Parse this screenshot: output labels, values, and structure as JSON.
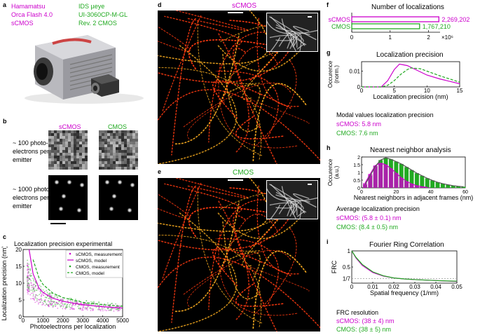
{
  "panel_labels": {
    "a": "a",
    "b": "b",
    "c": "c",
    "d": "d",
    "e": "e",
    "f": "f",
    "g": "g",
    "h": "h",
    "i": "i"
  },
  "camera_left": {
    "line1": "Hamamatsu",
    "line2": "Orca Flash 4.0",
    "line3": "sCMOS"
  },
  "camera_right": {
    "line1": "IDS µeye",
    "line2": "UI-3060CP-M-GL",
    "line3": "Rev. 2 CMOS"
  },
  "panel_b": {
    "col_scmos": "sCMOS",
    "col_cmos": "CMOS",
    "row1": [
      "~ 100 photo-",
      "electrons per",
      "emitter"
    ],
    "row2": [
      "~ 1000 photo-",
      "electrons per",
      "emitter"
    ]
  },
  "panel_d_title": "sCMOS",
  "panel_e_title": "CMOS",
  "colors": {
    "scmos": "#cc00cc",
    "cmos": "#22aa22"
  },
  "panel_g_text": {
    "header": "Modal values localization precision",
    "scmos": "sCMOS: 5.8 nm",
    "cmos": "CMOS: 7.6 nm"
  },
  "panel_h_text": {
    "header": "Average localization precision",
    "scmos": "sCMOS: (5.8 ± 0.1) nm",
    "cmos": "CMOS: (8.4 ± 0.5) nm"
  },
  "panel_i_text": {
    "header": "FRC resolution",
    "scmos": "sCMOS: (38 ± 4) nm",
    "cmos": "CMOS: (38 ± 5) nm"
  },
  "chart_data": [
    {
      "id": "c",
      "type": "scatter",
      "title": "Localization precision experimental",
      "xlabel": "Photoelectrons per localization",
      "ylabel": "Localization precision (nm)",
      "xlim": [
        0,
        5000
      ],
      "ylim": [
        0,
        20
      ],
      "xticks": [
        "0",
        "1000",
        "2000",
        "3000",
        "4000",
        "5000"
      ],
      "yticks": [
        "0",
        "5",
        "10",
        "15",
        "20"
      ],
      "legend": [
        "sCMOS, measurement",
        "sCMOS, model",
        "CMOS, measurement",
        "CMOS, model"
      ],
      "series": [
        {
          "name": "sCMOS, model",
          "x": [
            300,
            500,
            800,
            1000,
            1500,
            2000,
            3000,
            4000,
            5000
          ],
          "y": [
            20,
            12.8,
            8.5,
            7.2,
            5.5,
            4.6,
            3.6,
            3.0,
            2.6
          ]
        },
        {
          "name": "CMOS, model",
          "x": [
            500,
            800,
            1000,
            1500,
            2000,
            3000,
            4000,
            5000
          ],
          "y": [
            17,
            11.5,
            9.6,
            7.0,
            5.7,
            4.3,
            3.6,
            3.1
          ]
        }
      ]
    },
    {
      "id": "f",
      "type": "bar",
      "title": "Number of localizations",
      "categories": [
        "sCMOS",
        "CMOS"
      ],
      "values": [
        2269202,
        1767210
      ],
      "value_labels": [
        "2,269,202",
        "1,767,210"
      ],
      "xticks": [
        "0",
        "1",
        "2"
      ],
      "x_multiplier": "×10⁶",
      "xlim": [
        0,
        2.3
      ]
    },
    {
      "id": "g",
      "type": "line",
      "title": "Localization precision",
      "xlabel": "Localization precision (nm)",
      "ylabel": "Occurence (norm.)",
      "xlim": [
        0,
        15
      ],
      "ylim": [
        0,
        0.016
      ],
      "xticks": [
        "0",
        "5",
        "10",
        "15"
      ],
      "yticks": [
        "0",
        "0.01"
      ],
      "series": [
        {
          "name": "sCMOS",
          "x": [
            0,
            3,
            4,
            5,
            5.8,
            7,
            8,
            9,
            10,
            12,
            15
          ],
          "y": [
            0,
            0,
            0.004,
            0.011,
            0.0145,
            0.0135,
            0.0115,
            0.0095,
            0.0075,
            0.005,
            0.002
          ]
        },
        {
          "name": "CMOS",
          "x": [
            0,
            3,
            4,
            5,
            6,
            7,
            7.6,
            9,
            10,
            12,
            15
          ],
          "y": [
            0,
            0,
            0.001,
            0.004,
            0.008,
            0.011,
            0.012,
            0.0115,
            0.01,
            0.007,
            0.003
          ]
        }
      ]
    },
    {
      "id": "h",
      "type": "bar",
      "title": "Nearest neighbor analysis",
      "xlabel": "Nearest neighbors in adjacent frames (nm)",
      "ylabel": "Occurence (a.u.)",
      "xlim": [
        0,
        60
      ],
      "ylim": [
        0,
        2
      ],
      "xticks": [
        "0",
        "20",
        "40",
        "60"
      ],
      "yticks": [
        "0",
        "0.5",
        "1",
        "1.5",
        "2"
      ],
      "series": [
        {
          "name": "sCMOS",
          "x": [
            2,
            5,
            8,
            11,
            14,
            17,
            20,
            23,
            26,
            29,
            32,
            35,
            38
          ],
          "y": [
            0.3,
            0.9,
            1.45,
            1.6,
            1.5,
            1.25,
            0.95,
            0.65,
            0.42,
            0.25,
            0.14,
            0.07,
            0.03
          ]
        },
        {
          "name": "CMOS",
          "x": [
            2,
            5,
            8,
            11,
            14,
            17,
            20,
            23,
            26,
            29,
            32,
            35,
            38,
            41,
            44,
            47,
            50,
            53,
            56,
            59
          ],
          "y": [
            0.2,
            0.8,
            1.4,
            1.8,
            1.95,
            1.85,
            1.7,
            1.55,
            1.35,
            1.15,
            0.95,
            0.78,
            0.62,
            0.48,
            0.36,
            0.27,
            0.2,
            0.14,
            0.1,
            0.07
          ]
        }
      ]
    },
    {
      "id": "i",
      "type": "line",
      "title": "Fourier Ring Correlation",
      "xlabel": "Spatial frequency (1/nm)",
      "ylabel": "FRC",
      "xlim": [
        0,
        0.05
      ],
      "ylim": [
        0,
        1
      ],
      "xticks": [
        "0",
        "0.01",
        "0.02",
        "0.03",
        "0.04",
        "0.05"
      ],
      "yticks": [
        "1/7",
        "0.5",
        "1"
      ],
      "threshold": 0.143,
      "series": [
        {
          "name": "sCMOS",
          "x": [
            0,
            0.002,
            0.005,
            0.01,
            0.015,
            0.02,
            0.025,
            0.03,
            0.04,
            0.05
          ],
          "y": [
            1,
            0.78,
            0.55,
            0.33,
            0.22,
            0.16,
            0.13,
            0.11,
            0.08,
            0.05
          ]
        },
        {
          "name": "CMOS",
          "x": [
            0,
            0.002,
            0.005,
            0.01,
            0.015,
            0.02,
            0.025,
            0.03,
            0.04,
            0.05
          ],
          "y": [
            1,
            0.8,
            0.58,
            0.35,
            0.23,
            0.16,
            0.13,
            0.11,
            0.08,
            0.06
          ]
        }
      ]
    }
  ]
}
